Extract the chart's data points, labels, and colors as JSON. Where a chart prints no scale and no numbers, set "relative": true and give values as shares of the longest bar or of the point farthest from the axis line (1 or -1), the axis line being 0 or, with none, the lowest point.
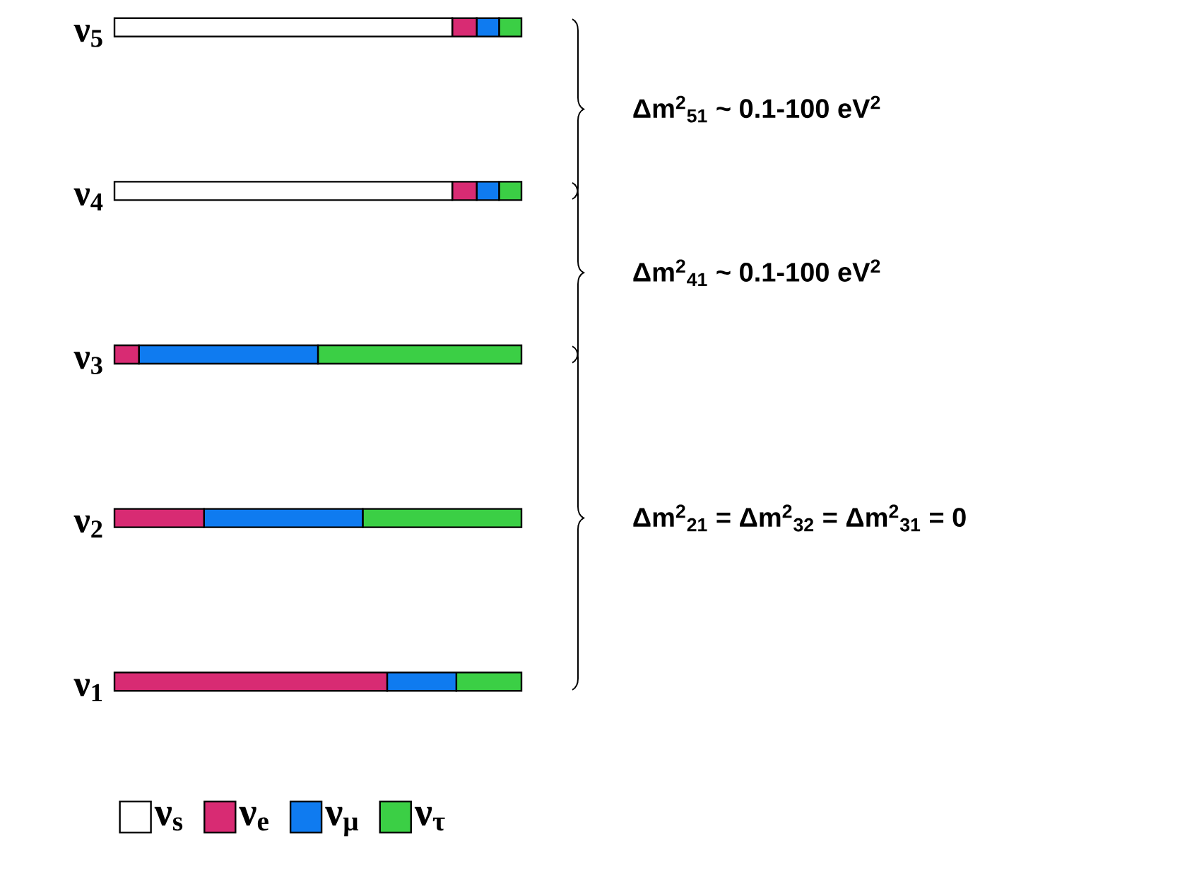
{
  "chart_data": {
    "type": "bar",
    "orientation": "horizontal",
    "stacked": true,
    "relative": true,
    "legend": "bottom",
    "categories": [
      "ν$_{5}$",
      "ν$_{4}$",
      "ν$_{3}$",
      "ν$_{2}$",
      "ν$_{1}$"
    ],
    "series": [
      {
        "name": "ν$_{s}$",
        "color": "#ffffff",
        "values": [
          0.83,
          0.83,
          0,
          0,
          0
        ]
      },
      {
        "name": "ν$_{e}$",
        "color": "#d82b73",
        "values": [
          0.06,
          0.06,
          0.06,
          0.22,
          0.67
        ]
      },
      {
        "name": "ν$_{μ}$",
        "color": "#0f7bf0",
        "values": [
          0.055,
          0.055,
          0.44,
          0.39,
          0.17
        ]
      },
      {
        "name": "ν$_{τ}$",
        "color": "#3bcf45",
        "values": [
          0.055,
          0.055,
          0.5,
          0.39,
          0.16
        ]
      }
    ],
    "annotations": [
      "Δm$^{2}$$_{51}$ ~ 0.1-100 eV$^{2}$",
      "Δm$^{2}$$_{41}$ ~ 0.1-100 eV$^{2}$",
      "Δm$^{2}$$_{21}$ = Δm$^{2}$$_{32}$ = Δm$^{2}$$_{31}$ = 0"
    ]
  }
}
